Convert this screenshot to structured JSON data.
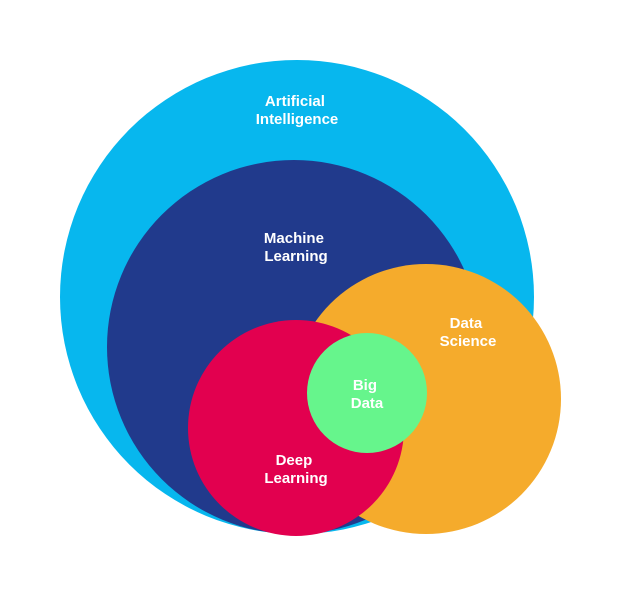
{
  "diagram": {
    "colors": {
      "artificial_intelligence": "#07b7ee",
      "machine_learning": "#213a8c",
      "data_science": "#f5ab2c",
      "deep_learning": "#e2004f",
      "big_data": "#66f58c",
      "text": "#ffffff"
    },
    "labels": {
      "ai_line1": "Artificial",
      "ai_line2": "Intelligence",
      "ml_line1": "Machine",
      "ml_line2": "Learning",
      "ds_line1": "Data",
      "ds_line2": "Science",
      "bd_line1": "Big",
      "bd_line2": "Data",
      "dl_line1": "Deep",
      "dl_line2": "Learning"
    }
  }
}
